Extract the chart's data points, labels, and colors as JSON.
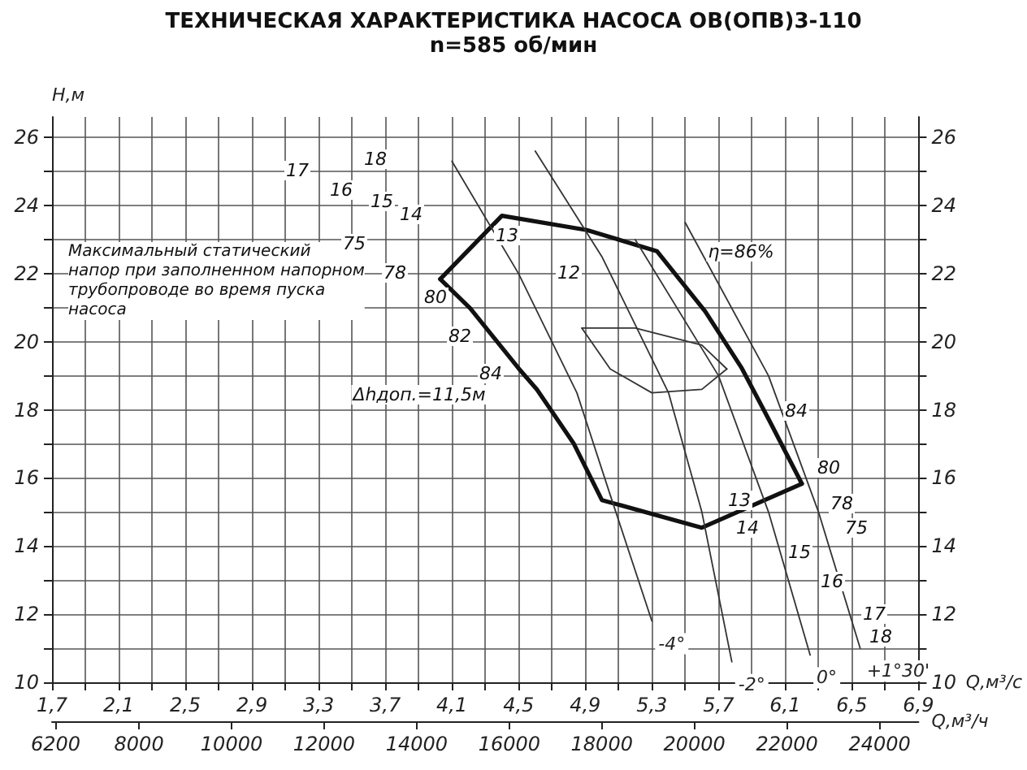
{
  "chart_data": {
    "type": "line",
    "title": "ТЕХНИЧЕСКАЯ ХАРАКТЕРИСТИКА НАСОСА ОВ(ОПВ)3-110",
    "subtitle": "n=585 об/мин",
    "xlabel": "Q,м³/с",
    "x2label": "Q,м³/ч",
    "ylabel": "H,м",
    "xlim": [
      1.7,
      6.9
    ],
    "ylim": [
      10,
      26.6
    ],
    "y2lim": [
      10,
      26.6
    ],
    "x2lim": [
      6120,
      24840
    ],
    "xticks": [
      {
        "value": 1.7,
        "label": "1,7"
      },
      {
        "value": 1.9,
        "label": null
      },
      {
        "value": 2.1,
        "label": "2,1"
      },
      {
        "value": 2.3,
        "label": null
      },
      {
        "value": 2.5,
        "label": "2,5"
      },
      {
        "value": 2.7,
        "label": null
      },
      {
        "value": 2.9,
        "label": "2,9"
      },
      {
        "value": 3.1,
        "label": null
      },
      {
        "value": 3.3,
        "label": "3,3"
      },
      {
        "value": 3.5,
        "label": null
      },
      {
        "value": 3.7,
        "label": "3,7"
      },
      {
        "value": 3.9,
        "label": null
      },
      {
        "value": 4.1,
        "label": "4,1"
      },
      {
        "value": 4.3,
        "label": null
      },
      {
        "value": 4.5,
        "label": "4,5"
      },
      {
        "value": 4.7,
        "label": null
      },
      {
        "value": 4.9,
        "label": "4,9"
      },
      {
        "value": 5.1,
        "label": null
      },
      {
        "value": 5.3,
        "label": "5,3"
      },
      {
        "value": 5.5,
        "label": null
      },
      {
        "value": 5.7,
        "label": "5,7"
      },
      {
        "value": 5.9,
        "label": null
      },
      {
        "value": 6.1,
        "label": "6,1"
      },
      {
        "value": 6.3,
        "label": null
      },
      {
        "value": 6.5,
        "label": "6,5"
      },
      {
        "value": 6.7,
        "label": null
      },
      {
        "value": 6.9,
        "label": "6,9"
      }
    ],
    "yticks": [
      10,
      {
        "value": 11,
        "label": null
      },
      12,
      {
        "value": 13,
        "label": null
      },
      14,
      {
        "value": 15,
        "label": null
      },
      16,
      {
        "value": 17,
        "label": null
      },
      18,
      {
        "value": 19,
        "label": null
      },
      20,
      {
        "value": 21,
        "label": null
      },
      22,
      {
        "value": 23,
        "label": null
      },
      24,
      {
        "value": 25,
        "label": null
      },
      26
    ],
    "y2ticks": [
      10,
      {
        "value": 11,
        "label": null
      },
      12,
      {
        "value": 13,
        "label": null
      },
      14,
      {
        "value": 15,
        "label": null
      },
      16,
      {
        "value": 17,
        "label": null
      },
      18,
      {
        "value": 19,
        "label": null
      },
      20,
      {
        "value": 21,
        "label": null
      },
      22,
      {
        "value": 23,
        "label": null
      },
      24,
      {
        "value": 25,
        "label": null
      },
      26
    ],
    "x2ticks": [
      6200,
      8000,
      10000,
      12000,
      14000,
      16000,
      18000,
      20000,
      22000,
      24000
    ],
    "grid": true,
    "legend": false,
    "marker": "none",
    "series": [
      {
        "color": "#111111",
        "x": [
          4.03,
          4.4,
          4.91,
          5.33,
          5.62,
          5.84,
          6.01,
          6.2
        ],
        "values": [
          21.84,
          23.7,
          23.28,
          22.66,
          20.89,
          19.22,
          17.64,
          15.83
        ]
      },
      {
        "color": "#111111",
        "x": [
          4.03,
          4.21,
          4.5,
          4.61,
          4.83,
          5.0,
          5.6,
          6.2
        ],
        "values": [
          21.84,
          20.98,
          19.22,
          18.6,
          17.02,
          15.35,
          14.54,
          15.83
        ]
      },
      {
        "name": "-4°",
        "color": "#333333",
        "x": [
          4.1,
          4.5,
          4.85,
          5.05,
          5.3
        ],
        "values": [
          25.3,
          22,
          18.5,
          15.5,
          11.8
        ]
      },
      {
        "name": "-2°",
        "color": "#333333",
        "x": [
          4.6,
          5.0,
          5.4,
          5.6,
          5.78
        ],
        "values": [
          25.6,
          22.5,
          18.5,
          15,
          10.6
        ]
      },
      {
        "name": "0°",
        "color": "#333333",
        "x": [
          5.2,
          5.7,
          6.0,
          6.25
        ],
        "values": [
          23,
          19,
          15,
          10.8
        ]
      },
      {
        "name": "+1°30'",
        "color": "#333333",
        "x": [
          5.5,
          6.0,
          6.3,
          6.55
        ],
        "values": [
          23.5,
          19,
          15,
          11
        ]
      },
      {
        "color": "#333333",
        "x": [
          4.88,
          5.2,
          5.6,
          5.75
        ],
        "values": [
          20.4,
          20.4,
          19.9,
          19.2
        ]
      },
      {
        "color": "#333333",
        "x": [
          4.88,
          5.05,
          5.3,
          5.6,
          5.75
        ],
        "values": [
          20.4,
          19.2,
          18.5,
          18.6,
          19.2
        ]
      }
    ],
    "annotations": [
      "Максимальный статический\nнапор при заполненном напорном\nтрубопроводе во время пуска\nнасоса",
      "η=86%",
      "Δhдоп.=11,5м",
      "75",
      "78",
      "80",
      "82",
      "84",
      "84",
      "80",
      "78",
      "75",
      "17",
      "18",
      "16",
      "15",
      "14",
      "13",
      "12",
      "13",
      "14",
      "15",
      "16",
      "17",
      "18"
    ]
  }
}
